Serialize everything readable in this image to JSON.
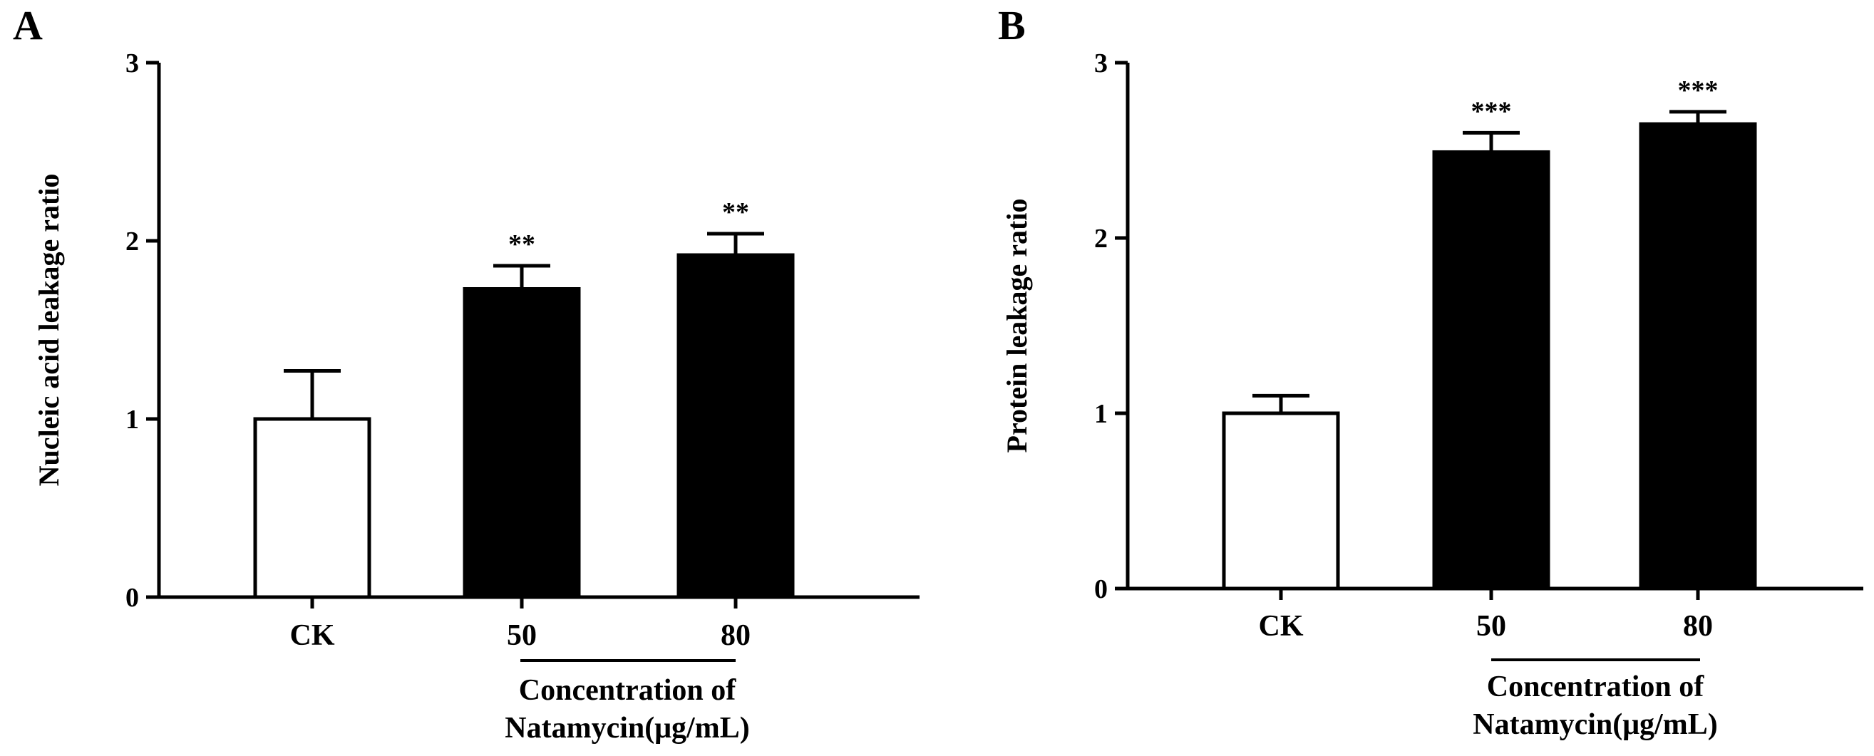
{
  "chart_data": [
    {
      "panel": "A",
      "type": "bar",
      "categories": [
        "CK",
        "50",
        "80"
      ],
      "values": [
        1.0,
        1.73,
        1.92
      ],
      "errors": [
        0.27,
        0.13,
        0.12
      ],
      "bar_colors": [
        "#ffffff",
        "#000000",
        "#000000"
      ],
      "significance": [
        "",
        "**",
        "**"
      ],
      "ylabel": "Nucleic acid leakage ratio",
      "xlabel_group": [
        "Concentration of",
        "Natamycin(μg/mL)"
      ],
      "ylim": [
        0,
        3
      ],
      "yticks": [
        0,
        1,
        2,
        3
      ],
      "grid": false
    },
    {
      "panel": "B",
      "type": "bar",
      "categories": [
        "CK",
        "50",
        "80"
      ],
      "values": [
        1.0,
        2.49,
        2.65
      ],
      "errors": [
        0.1,
        0.11,
        0.07
      ],
      "bar_colors": [
        "#ffffff",
        "#000000",
        "#000000"
      ],
      "significance": [
        "",
        "***",
        "***"
      ],
      "ylabel": "Protein leakage ratio",
      "xlabel_group": [
        "Concentration of",
        "Natamycin(μg/mL)"
      ],
      "ylim": [
        0,
        3
      ],
      "yticks": [
        0,
        1,
        2,
        3
      ],
      "grid": false
    }
  ]
}
